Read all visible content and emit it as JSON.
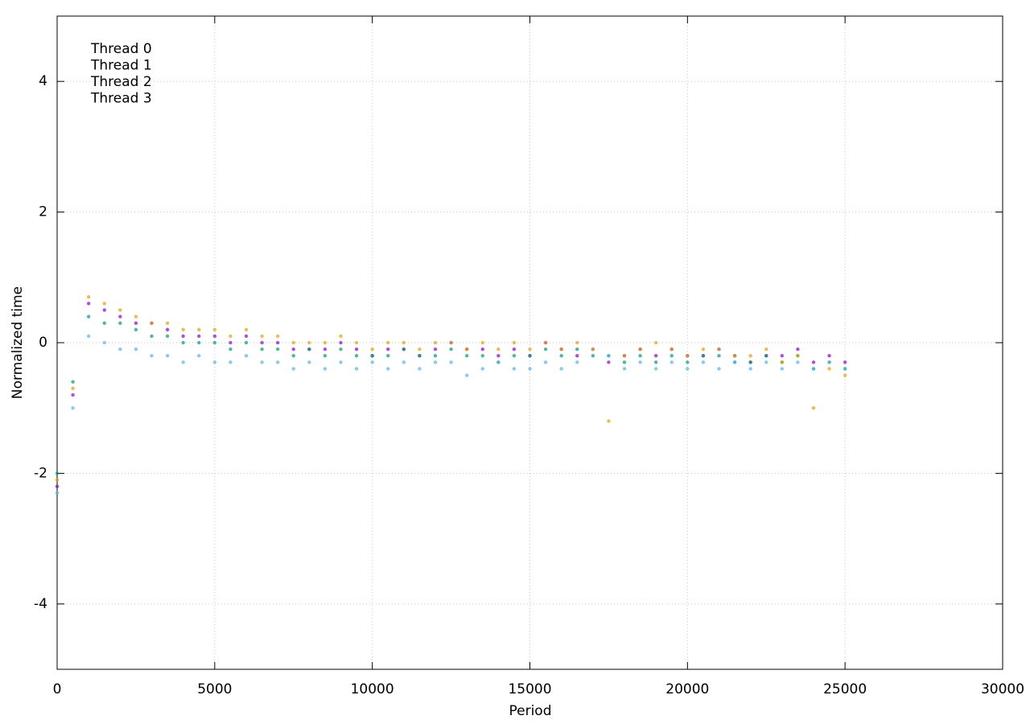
{
  "chart_data": {
    "type": "scatter",
    "xlabel": "Period",
    "ylabel": "Normalized time",
    "xlim": [
      0,
      30000
    ],
    "xticks": [
      0,
      5000,
      10000,
      15000,
      20000,
      25000,
      30000
    ],
    "ylim": [
      -5,
      5
    ],
    "yticks": [
      -4,
      -2,
      0,
      2,
      4
    ],
    "grid": true,
    "legend": "upper-left",
    "x": [
      0,
      500,
      1000,
      1500,
      2000,
      2500,
      3000,
      3500,
      4000,
      4500,
      5000,
      5500,
      6000,
      6500,
      7000,
      7500,
      8000,
      8500,
      9000,
      9500,
      10000,
      10500,
      11000,
      11500,
      12000,
      12500,
      13000,
      13500,
      14000,
      14500,
      15000,
      15500,
      16000,
      16500,
      17000,
      17500,
      18000,
      18500,
      19000,
      19500,
      20000,
      20500,
      21000,
      21500,
      22000,
      22500,
      23000,
      23500,
      24000,
      24500,
      25000
    ],
    "series": [
      {
        "name": "Thread 0",
        "color": "#9400d3",
        "values": [
          -2.2,
          -0.8,
          0.6,
          0.5,
          0.4,
          0.3,
          0.3,
          0.2,
          0.1,
          0.1,
          0.1,
          0.0,
          0.1,
          0.0,
          0.0,
          -0.1,
          -0.1,
          -0.1,
          0.0,
          -0.1,
          -0.2,
          -0.1,
          -0.1,
          -0.2,
          -0.1,
          0.0,
          -0.1,
          -0.1,
          -0.2,
          -0.1,
          -0.2,
          0.0,
          -0.1,
          -0.2,
          -0.1,
          -0.3,
          -0.2,
          -0.1,
          -0.2,
          -0.1,
          -0.2,
          -0.2,
          -0.1,
          -0.2,
          -0.3,
          -0.2,
          -0.2,
          -0.1,
          -0.3,
          -0.2,
          -0.3
        ]
      },
      {
        "name": "Thread 1",
        "color": "#009e73",
        "values": [
          -2.0,
          -0.6,
          0.4,
          0.3,
          0.3,
          0.2,
          0.1,
          0.1,
          0.0,
          0.0,
          0.0,
          -0.1,
          0.0,
          -0.1,
          -0.1,
          -0.2,
          -0.1,
          -0.2,
          -0.1,
          -0.2,
          -0.2,
          -0.2,
          -0.1,
          -0.2,
          -0.2,
          -0.1,
          -0.2,
          -0.2,
          -0.3,
          -0.2,
          -0.2,
          -0.1,
          -0.2,
          -0.1,
          -0.2,
          -0.2,
          -0.3,
          -0.2,
          -0.3,
          -0.2,
          -0.3,
          -0.2,
          -0.2,
          -0.3,
          -0.3,
          -0.2,
          -0.3,
          -0.2,
          -0.4,
          -0.3,
          -0.4
        ]
      },
      {
        "name": "Thread 2",
        "color": "#56b4e9",
        "values": [
          -2.3,
          -1.0,
          0.1,
          0.0,
          -0.1,
          -0.1,
          -0.2,
          -0.2,
          -0.3,
          -0.2,
          -0.3,
          -0.3,
          -0.2,
          -0.3,
          -0.3,
          -0.4,
          -0.3,
          -0.4,
          -0.3,
          -0.4,
          -0.3,
          -0.4,
          -0.3,
          -0.4,
          -0.3,
          -0.3,
          -0.5,
          -0.4,
          -0.3,
          -0.4,
          -0.4,
          -0.3,
          -0.4,
          -0.3,
          -0.1,
          -0.2,
          -0.4,
          -0.3,
          -0.4,
          -0.3,
          -0.4,
          -0.3,
          -0.4,
          -0.3,
          -0.4,
          -0.3,
          -0.4,
          -0.3,
          -0.4,
          -0.3,
          -0.4
        ]
      },
      {
        "name": "Thread 3",
        "color": "#e69f00",
        "values": [
          -2.1,
          -0.7,
          0.7,
          0.6,
          0.5,
          0.4,
          0.3,
          0.3,
          0.2,
          0.2,
          0.2,
          0.1,
          0.2,
          0.1,
          0.1,
          0.0,
          0.0,
          0.0,
          0.1,
          0.0,
          -0.1,
          0.0,
          0.0,
          -0.1,
          0.0,
          0.0,
          -0.1,
          0.0,
          -0.1,
          0.0,
          -0.1,
          0.0,
          -0.1,
          0.0,
          -0.1,
          -1.2,
          -0.2,
          -0.1,
          0.0,
          -0.1,
          -0.2,
          -0.1,
          -0.1,
          -0.2,
          -0.2,
          -0.1,
          -0.3,
          -0.2,
          -1.0,
          -0.4,
          -0.5
        ]
      }
    ]
  }
}
